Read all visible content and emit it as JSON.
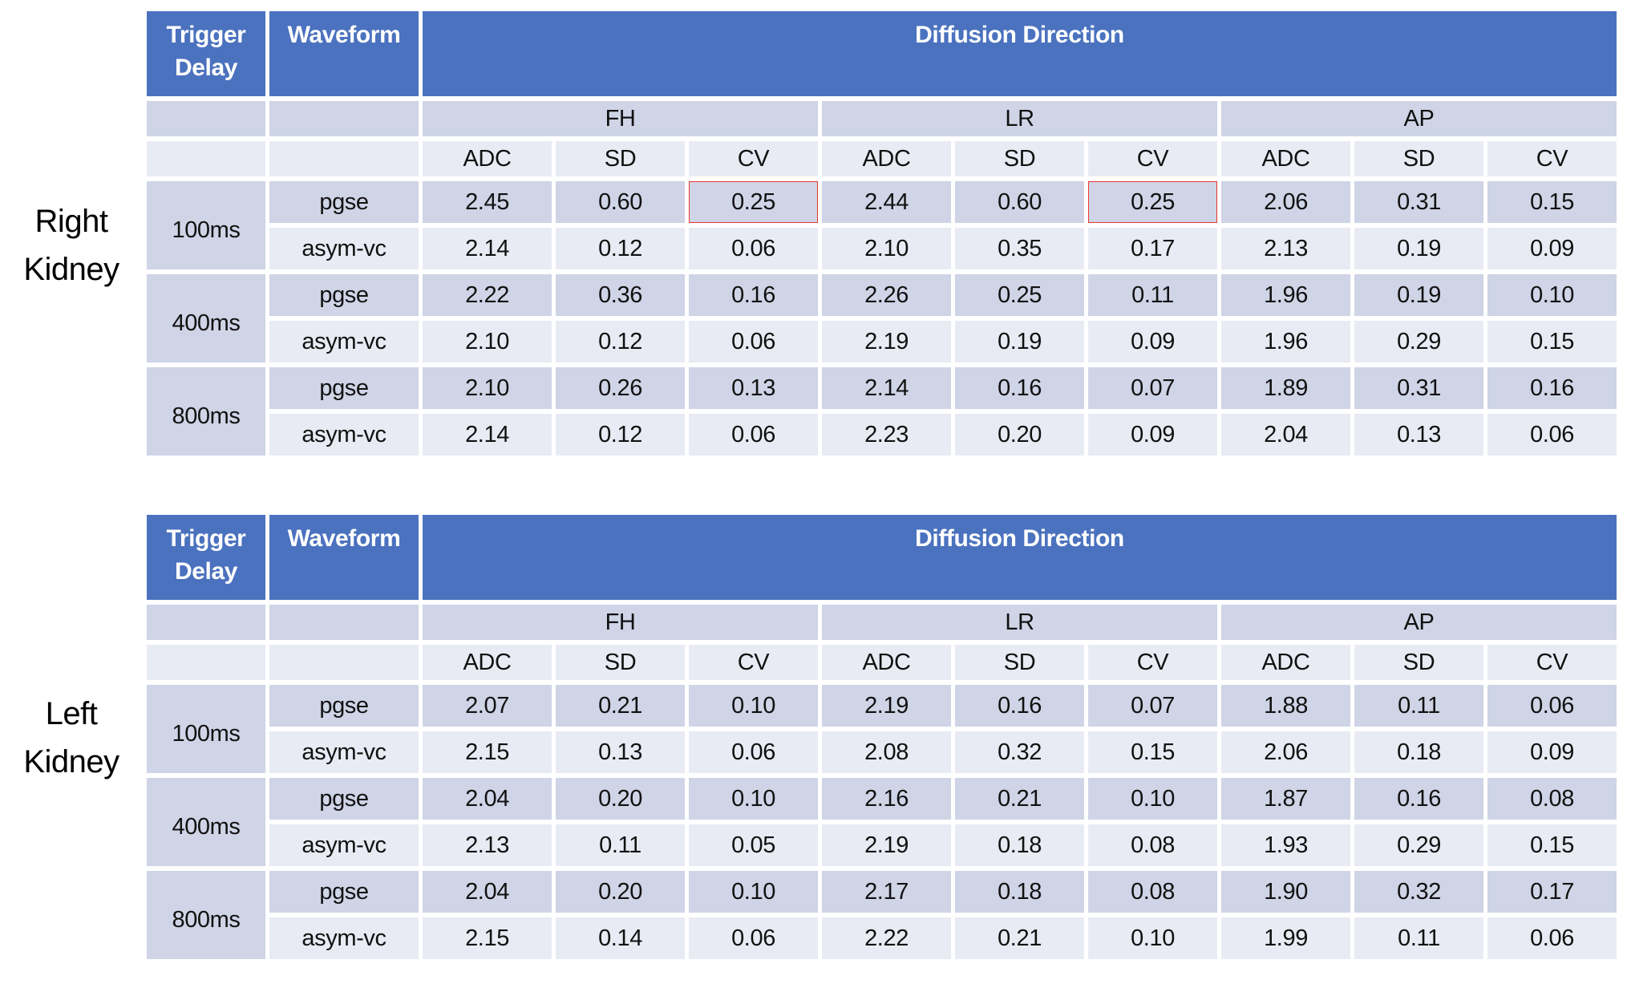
{
  "colors": {
    "header_blue": "#4B72BE",
    "band_dark": "#CFD4E6",
    "band_light": "#E9EBF4",
    "gridline_white": "#FFFFFF",
    "highlight_red": "#E9372C",
    "header_text": "#FFFFFF",
    "body_text": "#111111"
  },
  "table_header": {
    "trigger_delay": "Trigger Delay",
    "waveform": "Waveform",
    "diffusion_direction": "Diffusion Direction",
    "direction_groups": [
      "FH",
      "LR",
      "AP"
    ],
    "metrics": [
      "ADC",
      "SD",
      "CV"
    ]
  },
  "right_table": {
    "label_line1": "Right",
    "label_line2": "Kidney",
    "rows": [
      {
        "trigger_delay": "100ms",
        "waveform": "pgse",
        "values": [
          "2.45",
          "0.60",
          "0.25",
          "2.44",
          "0.60",
          "0.25",
          "2.06",
          "0.31",
          "0.15"
        ]
      },
      {
        "waveform": "asym-vc",
        "values": [
          "2.14",
          "0.12",
          "0.06",
          "2.10",
          "0.35",
          "0.17",
          "2.13",
          "0.19",
          "0.09"
        ]
      },
      {
        "trigger_delay": "400ms",
        "waveform": "pgse",
        "values": [
          "2.22",
          "0.36",
          "0.16",
          "2.26",
          "0.25",
          "0.11",
          "1.96",
          "0.19",
          "0.10"
        ]
      },
      {
        "waveform": "asym-vc",
        "values": [
          "2.10",
          "0.12",
          "0.06",
          "2.19",
          "0.19",
          "0.09",
          "1.96",
          "0.29",
          "0.15"
        ]
      },
      {
        "trigger_delay": "800ms",
        "waveform": "pgse",
        "values": [
          "2.10",
          "0.26",
          "0.13",
          "2.14",
          "0.16",
          "0.07",
          "1.89",
          "0.31",
          "0.16"
        ]
      },
      {
        "waveform": "asym-vc",
        "values": [
          "2.14",
          "0.12",
          "0.06",
          "2.23",
          "0.20",
          "0.09",
          "2.04",
          "0.13",
          "0.06"
        ]
      }
    ]
  },
  "left_table": {
    "label_line1": "Left",
    "label_line2": "Kidney",
    "rows": [
      {
        "trigger_delay": "100ms",
        "waveform": "pgse",
        "values": [
          "2.07",
          "0.21",
          "0.10",
          "2.19",
          "0.16",
          "0.07",
          "1.88",
          "0.11",
          "0.06"
        ]
      },
      {
        "waveform": "asym-vc",
        "values": [
          "2.15",
          "0.13",
          "0.06",
          "2.08",
          "0.32",
          "0.15",
          "2.06",
          "0.18",
          "0.09"
        ]
      },
      {
        "trigger_delay": "400ms",
        "waveform": "pgse",
        "values": [
          "2.04",
          "0.20",
          "0.10",
          "2.16",
          "0.21",
          "0.10",
          "1.87",
          "0.16",
          "0.08"
        ]
      },
      {
        "waveform": "asym-vc",
        "values": [
          "2.13",
          "0.11",
          "0.05",
          "2.19",
          "0.18",
          "0.08",
          "1.93",
          "0.29",
          "0.15"
        ]
      },
      {
        "trigger_delay": "800ms",
        "waveform": "pgse",
        "values": [
          "2.04",
          "0.20",
          "0.10",
          "2.17",
          "0.18",
          "0.08",
          "1.90",
          "0.32",
          "0.17"
        ]
      },
      {
        "waveform": "asym-vc",
        "values": [
          "2.15",
          "0.14",
          "0.06",
          "2.22",
          "0.21",
          "0.10",
          "1.99",
          "0.11",
          "0.06"
        ]
      }
    ]
  },
  "highlights": {
    "color": "#E9372C",
    "cells": [
      {
        "table": "right_table",
        "row": 0,
        "value_index": 2,
        "group": "FH",
        "metric": "CV",
        "value": "0.25"
      },
      {
        "table": "right_table",
        "row": 0,
        "value_index": 5,
        "group": "LR",
        "metric": "CV",
        "value": "0.25"
      }
    ]
  }
}
